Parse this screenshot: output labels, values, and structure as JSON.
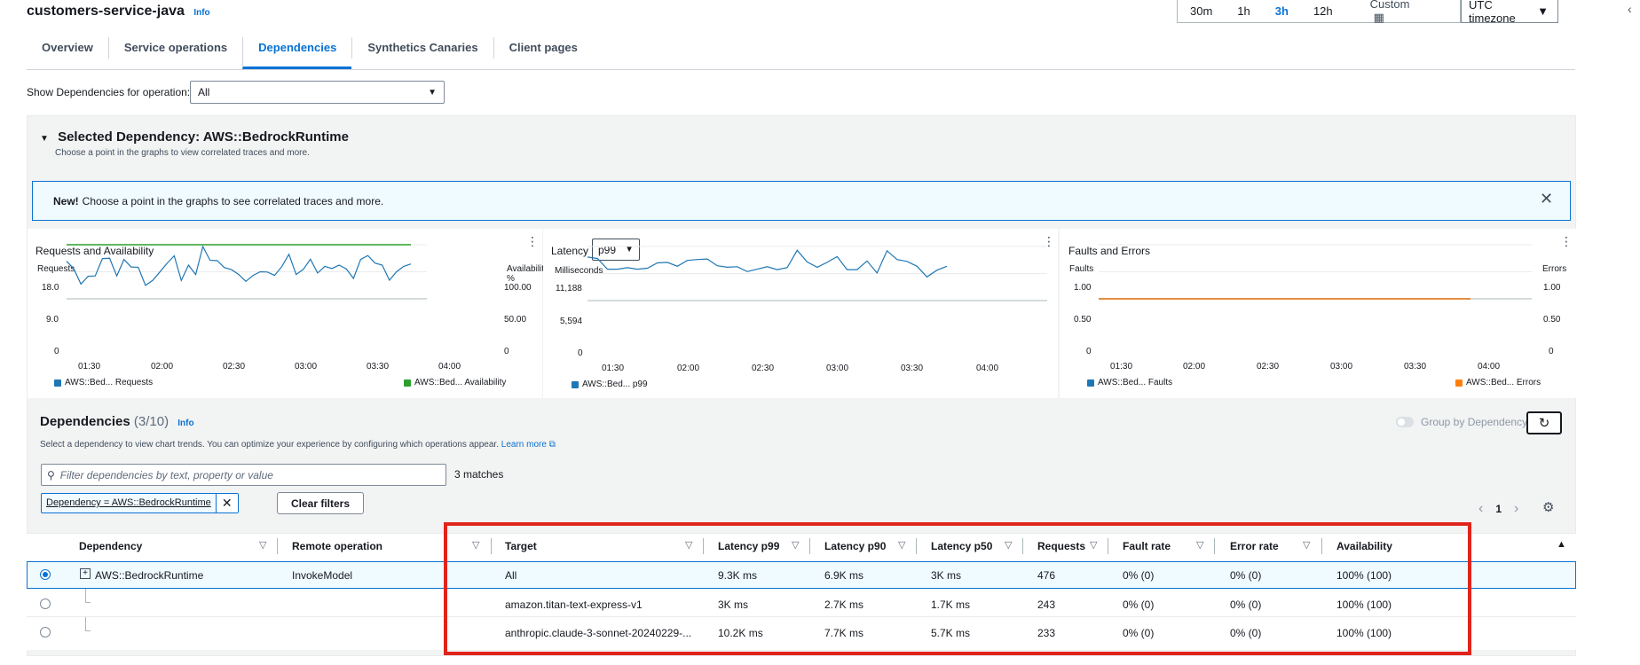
{
  "header": {
    "title": "customers-service-java",
    "info": "Info",
    "time_ranges": [
      "30m",
      "1h",
      "3h",
      "12h",
      "Custom"
    ],
    "selected_time_range": "3h",
    "timezone": "UTC timezone"
  },
  "tabs": [
    {
      "label": "Overview",
      "active": false
    },
    {
      "label": "Service operations",
      "active": false
    },
    {
      "label": "Dependencies",
      "active": true
    },
    {
      "label": "Synthetics Canaries",
      "active": false
    },
    {
      "label": "Client pages",
      "active": false
    }
  ],
  "operation_filter": {
    "label": "Show Dependencies for operation:",
    "value": "All"
  },
  "selected_dependency": {
    "heading": "Selected Dependency: AWS::BedrockRuntime",
    "subtext": "Choose a point in the graphs to view correlated traces and more."
  },
  "flash": {
    "bold": "New!",
    "text": "Choose a point in the graphs to see correlated traces and more."
  },
  "charts": {
    "requests": {
      "title": "Requests and Availability",
      "left_axis_label": "Requests",
      "right_axis_label": "Availability %",
      "left_ticks": [
        "18.0",
        "9.0",
        "0"
      ],
      "right_ticks": [
        "100.00",
        "50.00",
        "0"
      ],
      "x_ticks": [
        "01:30",
        "02:00",
        "02:30",
        "03:00",
        "03:30",
        "04:00"
      ],
      "legend": [
        "AWS::Bed... Requests",
        "AWS::Bed... Availability"
      ]
    },
    "latency": {
      "title": "Latency",
      "stat": "p99",
      "axis_label": "Milliseconds",
      "ticks": [
        "11,188",
        "5,594",
        "0"
      ],
      "x_ticks": [
        "01:30",
        "02:00",
        "02:30",
        "03:00",
        "03:30",
        "04:00"
      ],
      "legend": [
        "AWS::Bed... p99"
      ]
    },
    "faults": {
      "title": "Faults and Errors",
      "left_axis_label": "Faults",
      "right_axis_label": "Errors",
      "left_ticks": [
        "1.00",
        "0.50",
        "0"
      ],
      "right_ticks": [
        "1.00",
        "0.50",
        "0"
      ],
      "x_ticks": [
        "01:30",
        "02:00",
        "02:30",
        "03:00",
        "03:30",
        "04:00"
      ],
      "legend": [
        "AWS::Bed... Faults",
        "AWS::Bed... Errors"
      ]
    }
  },
  "chart_data": [
    {
      "type": "line",
      "title": "Requests and Availability",
      "ylabel": "Requests",
      "y2label": "Availability %",
      "ylim": [
        0,
        18
      ],
      "y2lim": [
        0,
        100
      ],
      "series": [
        {
          "name": "AWS::Bed... Requests",
          "color": "#1f77b4",
          "values": [
            12.5,
            10,
            4.9,
            7.5,
            7.6,
            13.4,
            13.5,
            7.6,
            13.1,
            10.6,
            10.5,
            4.5,
            6.1,
            8.9,
            11.8,
            14.3,
            6.1,
            11.2,
            8.1,
            17.4,
            12.8,
            12.7,
            10.4,
            9.7,
            8.1,
            5.8,
            7.8,
            9.0,
            8.9,
            7.8,
            10.7,
            14.8,
            8.1,
            9.8,
            13.2,
            8.6,
            10.8,
            10.1,
            11.2,
            9.9,
            6.8,
            13.1,
            14.4,
            11.9,
            11.2,
            6.2,
            9.0,
            10.8,
            11.6
          ]
        },
        {
          "name": "AWS::Bed... Availability",
          "color": "#2ca02c",
          "values": [
            100,
            100
          ]
        }
      ]
    },
    {
      "type": "line",
      "title": "Latency",
      "ylabel": "Milliseconds",
      "ylim": [
        0,
        11188
      ],
      "series": [
        {
          "name": "AWS::Bed... p99",
          "color": "#1f77b4",
          "values": [
            9000,
            8700,
            6500,
            6500,
            6800,
            6500,
            6700,
            7800,
            7900,
            7100,
            8300,
            8500,
            8600,
            7200,
            6900,
            7000,
            6000,
            6500,
            7000,
            6400,
            6800,
            10400,
            8000,
            6900,
            7900,
            9100,
            6400,
            6400,
            8200,
            5700,
            10300,
            8500,
            8100,
            7100,
            4900,
            6300,
            7100
          ]
        }
      ]
    },
    {
      "type": "line",
      "title": "Faults and Errors",
      "ylabel": "Faults",
      "y2label": "Errors",
      "ylim": [
        0,
        1
      ],
      "y2lim": [
        0,
        1
      ],
      "series": [
        {
          "name": "AWS::Bed... Faults",
          "color": "#1f77b4",
          "values": [
            0,
            0
          ]
        },
        {
          "name": "AWS::Bed... Errors",
          "color": "#ff7f0e",
          "values": [
            0,
            0
          ]
        }
      ]
    }
  ],
  "dependencies": {
    "title": "Dependencies",
    "count": "(3/10)",
    "info": "Info",
    "description": "Select a dependency to view chart trends. You can optimize your experience by configuring which operations appear.",
    "learn_more": "Learn more",
    "group_toggle": "Group by Dependency",
    "search_placeholder": "Filter dependencies by text, property or value",
    "matches": "3 matches",
    "filter_token": "Dependency = AWS::BedrockRuntime",
    "clear_filters": "Clear filters",
    "page": "1",
    "columns": [
      "Dependency",
      "Remote operation",
      "Target",
      "Latency p99",
      "Latency p90",
      "Latency p50",
      "Requests",
      "Fault rate",
      "Error rate",
      "Availability"
    ],
    "rows": [
      {
        "dependency": "AWS::BedrockRuntime",
        "operation": "InvokeModel",
        "target": "All",
        "p99": "9.3K ms",
        "p90": "6.9K ms",
        "p50": "3K ms",
        "requests": "476",
        "fault": "0% (0)",
        "error": "0% (0)",
        "availability": "100% (100)"
      },
      {
        "dependency": "",
        "operation": "",
        "target": "amazon.titan-text-express-v1",
        "p99": "3K ms",
        "p90": "2.7K ms",
        "p50": "1.7K ms",
        "requests": "243",
        "fault": "0% (0)",
        "error": "0% (0)",
        "availability": "100% (100)"
      },
      {
        "dependency": "",
        "operation": "",
        "target": "anthropic.claude-3-sonnet-20240229-...",
        "p99": "10.2K ms",
        "p90": "7.7K ms",
        "p50": "5.7K ms",
        "requests": "233",
        "fault": "0% (0)",
        "error": "0% (0)",
        "availability": "100% (100)"
      }
    ]
  }
}
